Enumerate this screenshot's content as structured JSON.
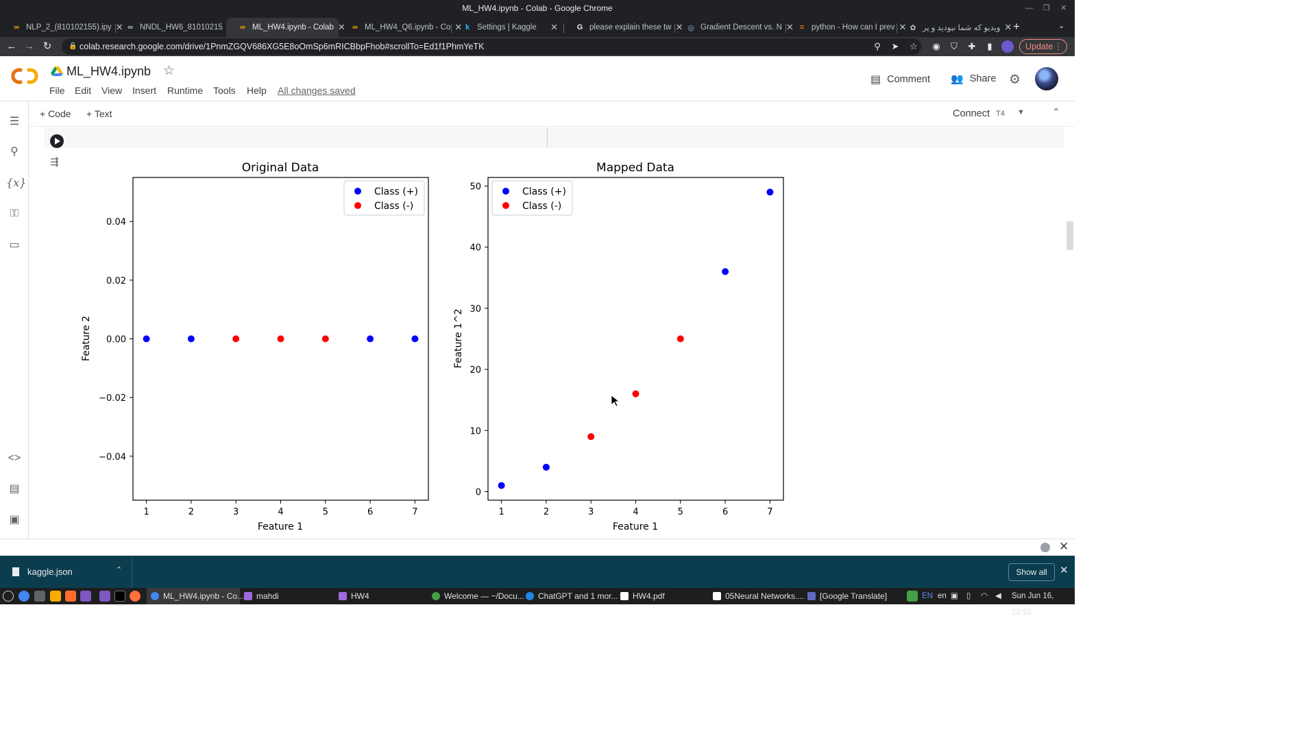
{
  "window": {
    "title": "ML_HW4.ipynb - Colab - Google Chrome"
  },
  "tabs": [
    {
      "label": "NLP_2_(810102155).ipy",
      "icon": "colab-icon"
    },
    {
      "label": "NNDL_HW6_81010215",
      "icon": "colab-icon"
    },
    {
      "label": "ML_HW4.ipynb - Colab",
      "icon": "colab-icon",
      "active": true
    },
    {
      "label": "ML_HW4_Q6.ipynb - Co",
      "icon": "colab-icon"
    },
    {
      "label": "Settings | Kaggle",
      "icon": "kaggle-icon"
    },
    {
      "label": "please explain these tw",
      "icon": "google-icon"
    },
    {
      "label": "Gradient Descent vs. N",
      "icon": "site-icon"
    },
    {
      "label": "python - How can I prev",
      "icon": "stackoverflow-icon"
    },
    {
      "label": "ویدیو که شما نبودید و پر",
      "icon": "site-icon"
    }
  ],
  "address_bar": {
    "url": "colab.research.google.com/drive/1PnmZGQV686XG5E8oOmSp6mRICBbpFhob#scrollTo=Ed1f1PhmYeTK"
  },
  "browser": {
    "update_label": "Update"
  },
  "colab": {
    "notebook_title": "ML_HW4.ipynb",
    "menu": [
      "File",
      "Edit",
      "View",
      "Insert",
      "Runtime",
      "Tools",
      "Help"
    ],
    "save_status": "All changes saved",
    "comment_label": "Comment",
    "share_label": "Share",
    "add_code_label": "+ Code",
    "add_text_label": "+ Text",
    "connect_label": "Connect",
    "runtime_type": "T4"
  },
  "chart_data": [
    {
      "type": "scatter",
      "title": "Original Data",
      "xlabel": "Feature 1",
      "ylabel": "Feature 2",
      "xlim": [
        0.7,
        7.3
      ],
      "ylim": [
        -0.055,
        0.055
      ],
      "xticks": [
        1,
        2,
        3,
        4,
        5,
        6,
        7
      ],
      "yticks": [
        -0.04,
        -0.02,
        0.0,
        0.02,
        0.04
      ],
      "ytick_labels": [
        "−0.04",
        "−0.02",
        "0.00",
        "0.02",
        "0.04"
      ],
      "legend_position": "top-right",
      "series": [
        {
          "name": "Class (+)",
          "color": "#0000ff",
          "points": [
            [
              1,
              0
            ],
            [
              2,
              0
            ],
            [
              6,
              0
            ],
            [
              7,
              0
            ]
          ]
        },
        {
          "name": "Class (-)",
          "color": "#ff0000",
          "points": [
            [
              3,
              0
            ],
            [
              4,
              0
            ],
            [
              5,
              0
            ]
          ]
        }
      ]
    },
    {
      "type": "scatter",
      "title": "Mapped Data",
      "xlabel": "Feature 1",
      "ylabel": "Feature 1^2",
      "xlim": [
        0.7,
        7.3
      ],
      "ylim": [
        -1.4,
        51.4
      ],
      "xticks": [
        1,
        2,
        3,
        4,
        5,
        6,
        7
      ],
      "yticks": [
        0,
        10,
        20,
        30,
        40,
        50
      ],
      "ytick_labels": [
        "0",
        "10",
        "20",
        "30",
        "40",
        "50"
      ],
      "legend_position": "top-left",
      "series": [
        {
          "name": "Class (+)",
          "color": "#0000ff",
          "points": [
            [
              1,
              1
            ],
            [
              2,
              4
            ],
            [
              6,
              36
            ],
            [
              7,
              49
            ]
          ]
        },
        {
          "name": "Class (-)",
          "color": "#ff0000",
          "points": [
            [
              3,
              9
            ],
            [
              4,
              16
            ],
            [
              5,
              25
            ]
          ]
        }
      ]
    }
  ],
  "download_shelf": {
    "file": "kaggle.json",
    "show_all_label": "Show all"
  },
  "taskbar": {
    "tasks": [
      {
        "label": "ML_HW4.ipynb - Co...",
        "active": true
      },
      {
        "label": "mahdi"
      },
      {
        "label": "HW4"
      },
      {
        "label": "Welcome — ~/Docu..."
      },
      {
        "label": "ChatGPT and 1 mor..."
      },
      {
        "label": "HW4.pdf"
      },
      {
        "label": "05Neural Networks...."
      },
      {
        "label": "[Google Translate]"
      }
    ],
    "tray_lang_1": "EN",
    "tray_lang_2": "en",
    "clock": "Sun Jun 16, 22:52"
  }
}
